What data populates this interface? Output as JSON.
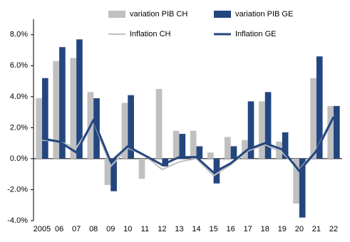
{
  "chart_data": {
    "type": "bar-line",
    "categories": [
      "2005",
      "06",
      "07",
      "08",
      "09",
      "10",
      "11",
      "12",
      "13",
      "14",
      "15",
      "16",
      "17",
      "18",
      "19",
      "20",
      "21",
      "22"
    ],
    "series": [
      {
        "name": "variation PIB CH",
        "kind": "bar",
        "color": "#c0c0c0",
        "values": [
          3.9,
          6.3,
          6.5,
          4.3,
          -1.7,
          3.6,
          -1.3,
          4.5,
          1.8,
          1.8,
          0.4,
          1.4,
          1.2,
          3.7,
          1.1,
          -2.9,
          5.2,
          3.4
        ]
      },
      {
        "name": "variation PIB GE",
        "kind": "bar",
        "color": "#23467f",
        "values": [
          5.2,
          7.2,
          7.7,
          3.9,
          -2.1,
          4.1,
          0.0,
          -0.5,
          1.6,
          0.8,
          -1.6,
          0.8,
          3.7,
          4.3,
          1.7,
          -3.8,
          6.6,
          3.4
        ]
      },
      {
        "name": "Inflation CH",
        "kind": "line",
        "color": "#c0c0c0",
        "values": [
          1.2,
          1.1,
          0.7,
          2.4,
          -0.5,
          0.7,
          0.2,
          -0.7,
          -0.2,
          0.0,
          -1.1,
          -0.4,
          0.5,
          0.9,
          0.4,
          -0.7,
          0.6,
          2.8
        ]
      },
      {
        "name": "Inflation GE",
        "kind": "line",
        "color": "#23467f",
        "values": [
          1.3,
          1.1,
          0.4,
          2.5,
          -0.2,
          0.8,
          0.2,
          -0.4,
          0.1,
          0.1,
          -0.9,
          -0.3,
          0.6,
          1.0,
          0.6,
          -0.8,
          0.5,
          2.7
        ]
      }
    ],
    "ylim": [
      -4,
      9
    ],
    "yticks": [
      {
        "value": -4,
        "label": "-4.0%"
      },
      {
        "value": -2,
        "label": "-2.0%"
      },
      {
        "value": 0,
        "label": "0.0%"
      },
      {
        "value": 2,
        "label": "2.0%"
      },
      {
        "value": 4,
        "label": "4.0%"
      },
      {
        "value": 6,
        "label": "6.0%"
      },
      {
        "value": 8,
        "label": "8.0%"
      }
    ],
    "legend": "top"
  }
}
